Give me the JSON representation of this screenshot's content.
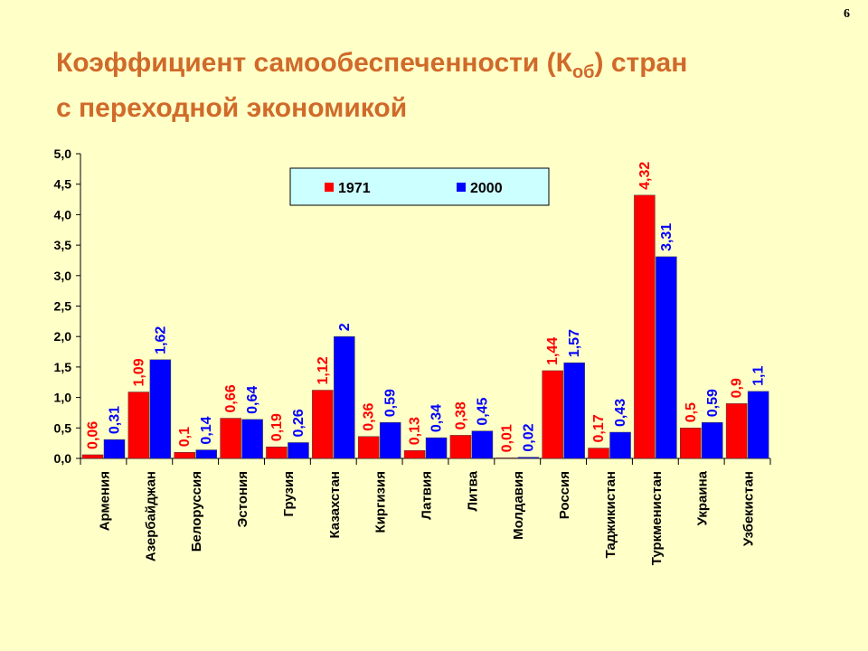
{
  "page_number": "6",
  "title": {
    "line1_before_sub": "Коэффициент самообеспеченности (К",
    "line1_sub": "об",
    "line1_after_sub": ") стран",
    "line2": "с переходной экономикой"
  },
  "chart_data": {
    "type": "bar",
    "categories": [
      "Армения",
      "Азербайджан",
      "Белоруссия",
      "Эстония",
      "Грузия",
      "Казахстан",
      "Киргизия",
      "Латвия",
      "Литва",
      "Молдавия",
      "Россия",
      "Таджикистан",
      "Туркменистан",
      "Украина",
      "Узбекистан"
    ],
    "series": [
      {
        "name": "1971",
        "color": "#ff0000",
        "values": [
          0.06,
          1.09,
          0.1,
          0.66,
          0.19,
          1.12,
          0.36,
          0.13,
          0.38,
          0.01,
          1.44,
          0.17,
          4.32,
          0.5,
          0.9
        ],
        "labels": [
          "0,06",
          "1,09",
          "0,1",
          "0,66",
          "0,19",
          "1,12",
          "0,36",
          "0,13",
          "0,38",
          "0,01",
          "1,44",
          "0,17",
          "4,32",
          "0,5",
          "0,9"
        ]
      },
      {
        "name": "2000",
        "color": "#0000ff",
        "values": [
          0.31,
          1.62,
          0.14,
          0.64,
          0.26,
          2,
          0.59,
          0.34,
          0.45,
          0.02,
          1.57,
          0.43,
          3.31,
          0.59,
          1.1
        ],
        "labels": [
          "0,31",
          "1,62",
          "0,14",
          "0,64",
          "0,26",
          "2",
          "0,59",
          "0,34",
          "0,45",
          "0,02",
          "1,57",
          "0,43",
          "3,31",
          "0,59",
          "1,1"
        ]
      }
    ],
    "ylim": [
      0,
      5
    ],
    "yticks": [
      0,
      0.5,
      1,
      1.5,
      2,
      2.5,
      3,
      3.5,
      4,
      4.5,
      5
    ],
    "ytick_labels": [
      "0,0",
      "0,5",
      "1,0",
      "1,5",
      "2,0",
      "2,5",
      "3,0",
      "3,5",
      "4,0",
      "4,5",
      "5,0"
    ],
    "grid": false,
    "legend_position": "top-center",
    "legend_background": "#ccffff"
  }
}
